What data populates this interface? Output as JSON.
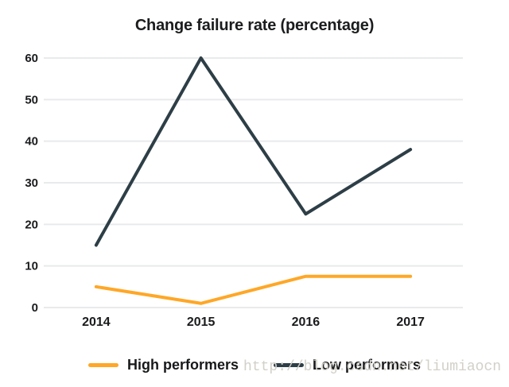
{
  "chart_data": {
    "type": "line",
    "title": "Change failure rate (percentage)",
    "categories": [
      "2014",
      "2015",
      "2016",
      "2017"
    ],
    "series": [
      {
        "name": "High performers",
        "color": "#FFA726",
        "values": [
          5,
          1,
          7.5,
          7.5
        ]
      },
      {
        "name": "Low performers",
        "color": "#2D3E46",
        "values": [
          15,
          60,
          22.5,
          38
        ]
      }
    ],
    "ylim": [
      0,
      60
    ],
    "yticks": [
      0,
      10,
      20,
      30,
      40,
      50,
      60
    ],
    "xlabel": "",
    "ylabel": "",
    "grid": "horizontal",
    "grid_color": "#E9EAEC",
    "legend_position": "bottom"
  },
  "watermark": {
    "text": "http://blog.csdn.net/liumiaocn"
  }
}
